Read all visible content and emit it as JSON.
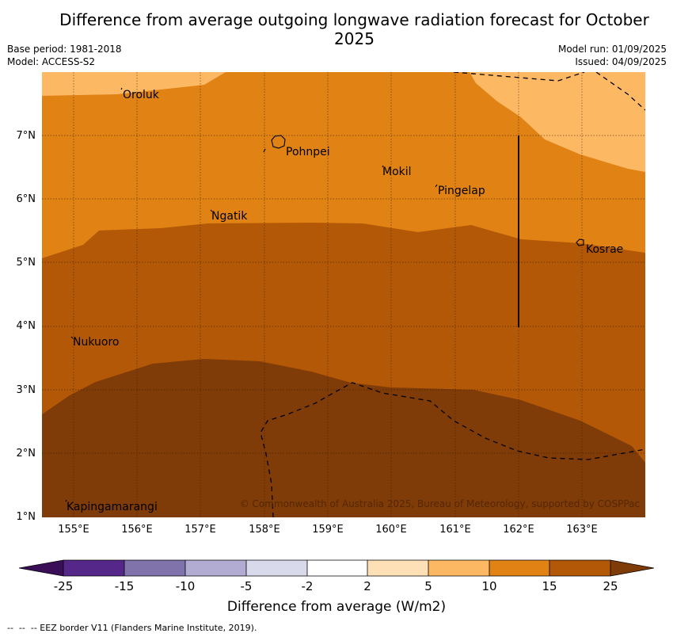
{
  "title": "Difference from average outgoing longwave radiation forecast for October 2025",
  "base_period": "Base period: 1981-2018",
  "model": "Model: ACCESS-S2",
  "model_run": "Model run: 01/09/2025",
  "issued": "Issued: 04/09/2025",
  "lat_labels": [
    "7°N",
    "6°N",
    "5°N",
    "4°N",
    "3°N",
    "2°N",
    "1°N"
  ],
  "lon_labels": [
    "155°E",
    "156°E",
    "157°E",
    "158°E",
    "159°E",
    "160°E",
    "161°E",
    "162°E",
    "163°E"
  ],
  "places": {
    "oroluk": "Oroluk",
    "pohnpei": "Pohnpei",
    "mokil": "Mokil",
    "pingelap": "Pingelap",
    "ngatik": "Ngatik",
    "kosrae": "Kosrae",
    "nukuoro": "Nukuoro",
    "kapingamarangi": "Kapingamarangi"
  },
  "copyright": "© Commonwealth of Australia 2025, Bureau of Meteorology, supported by COSPPac",
  "colorbar": {
    "label": "Difference from average (W/m2)",
    "ticks": [
      "-25",
      "-15",
      "-10",
      "-5",
      "-2",
      "2",
      "5",
      "10",
      "15",
      "25"
    ],
    "colors": [
      "#3b0f57",
      "#542788",
      "#8073ac",
      "#b2abd2",
      "#d8daeb",
      "#ffffff",
      "#fee0b6",
      "#fdb863",
      "#e08214",
      "#b35806",
      "#7f3b08"
    ]
  },
  "footnote": "--  --  -- EEZ border V11 (Flanders Marine Institute, 2019)."
}
